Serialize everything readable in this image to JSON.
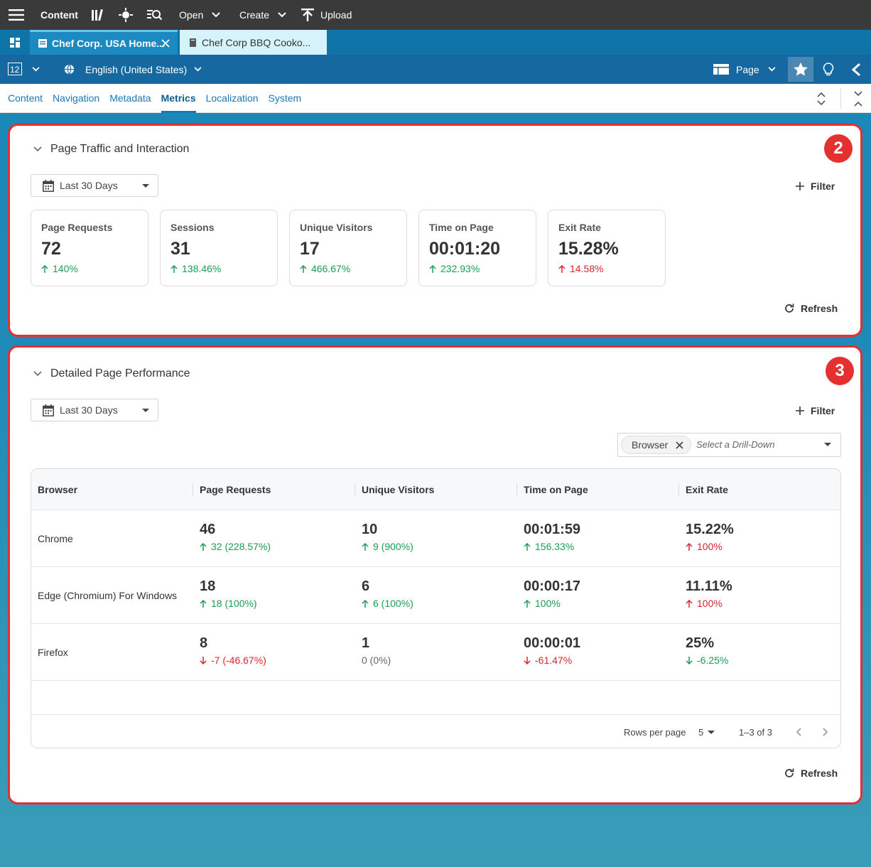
{
  "topbar": {
    "content_label": "Content",
    "open_label": "Open",
    "create_label": "Create",
    "upload_label": "Upload",
    "icon_menu": "hamburger-menu-icon",
    "icon_library": "library-icon",
    "icon_target": "target-icon",
    "icon_search": "search-list-icon"
  },
  "tabs": [
    {
      "label": "Chef Corp. USA Home..."
    },
    {
      "label": "Chef Corp BBQ Cooko..."
    }
  ],
  "toolbar": {
    "language": "English (United States)",
    "page_label": "Page"
  },
  "subnav": {
    "items": [
      {
        "label": "Content"
      },
      {
        "label": "Navigation"
      },
      {
        "label": "Metadata"
      },
      {
        "label": "Metrics"
      },
      {
        "label": "Localization"
      },
      {
        "label": "System"
      }
    ],
    "active": "Metrics"
  },
  "traffic": {
    "title": "Page Traffic and Interaction",
    "badge": "2",
    "date_range": "Last 30 Days",
    "filter_label": "Filter",
    "refresh_label": "Refresh",
    "cards": [
      {
        "label": "Page Requests",
        "value": "72",
        "change": "140%",
        "direction": "up"
      },
      {
        "label": "Sessions",
        "value": "31",
        "change": "138.46%",
        "direction": "up"
      },
      {
        "label": "Unique Visitors",
        "value": "17",
        "change": "466.67%",
        "direction": "up"
      },
      {
        "label": "Time on Page",
        "value": "00:01:20",
        "change": "232.93%",
        "direction": "up"
      },
      {
        "label": "Exit Rate",
        "value": "15.28%",
        "change": "14.58%",
        "direction": "up-bad"
      }
    ]
  },
  "performance": {
    "title": "Detailed Page Performance",
    "badge": "3",
    "date_range": "Last 30 Days",
    "filter_label": "Filter",
    "chip_label": "Browser",
    "drilldown_placeholder": "Select a Drill-Down",
    "refresh_label": "Refresh",
    "columns": [
      "Browser",
      "Page Requests",
      "Unique Visitors",
      "Time on Page",
      "Exit Rate"
    ],
    "rows": [
      {
        "name": "Chrome",
        "requests": "46",
        "requests_change": "32 (228.57%)",
        "requests_dir": "up",
        "visitors": "10",
        "visitors_change": "9 (900%)",
        "visitors_dir": "up",
        "time": "00:01:59",
        "time_change": "156.33%",
        "time_dir": "up",
        "exit": "15.22%",
        "exit_change": "100%",
        "exit_dir": "up-bad"
      },
      {
        "name": "Edge (Chromium) For Windows",
        "requests": "18",
        "requests_change": "18 (100%)",
        "requests_dir": "up",
        "visitors": "6",
        "visitors_change": "6 (100%)",
        "visitors_dir": "up",
        "time": "00:00:17",
        "time_change": "100%",
        "time_dir": "up",
        "exit": "11.11%",
        "exit_change": "100%",
        "exit_dir": "up-bad"
      },
      {
        "name": "Firefox",
        "requests": "8",
        "requests_change": "-7 (-46.67%)",
        "requests_dir": "down-bad",
        "visitors": "1",
        "visitors_change": "0 (0%)",
        "visitors_dir": "flat",
        "time": "00:00:01",
        "time_change": "-61.47%",
        "time_dir": "down-bad",
        "exit": "25%",
        "exit_change": "-6.25%",
        "exit_dir": "down-good"
      }
    ],
    "rows_per_page_label": "Rows per page",
    "rows_per_page": "5",
    "pagination": "1–3 of 3"
  },
  "colors": {
    "positive": "#1a9d56",
    "negative": "#d7262c",
    "highlight": "#e53030",
    "accent": "#1a78b4"
  }
}
